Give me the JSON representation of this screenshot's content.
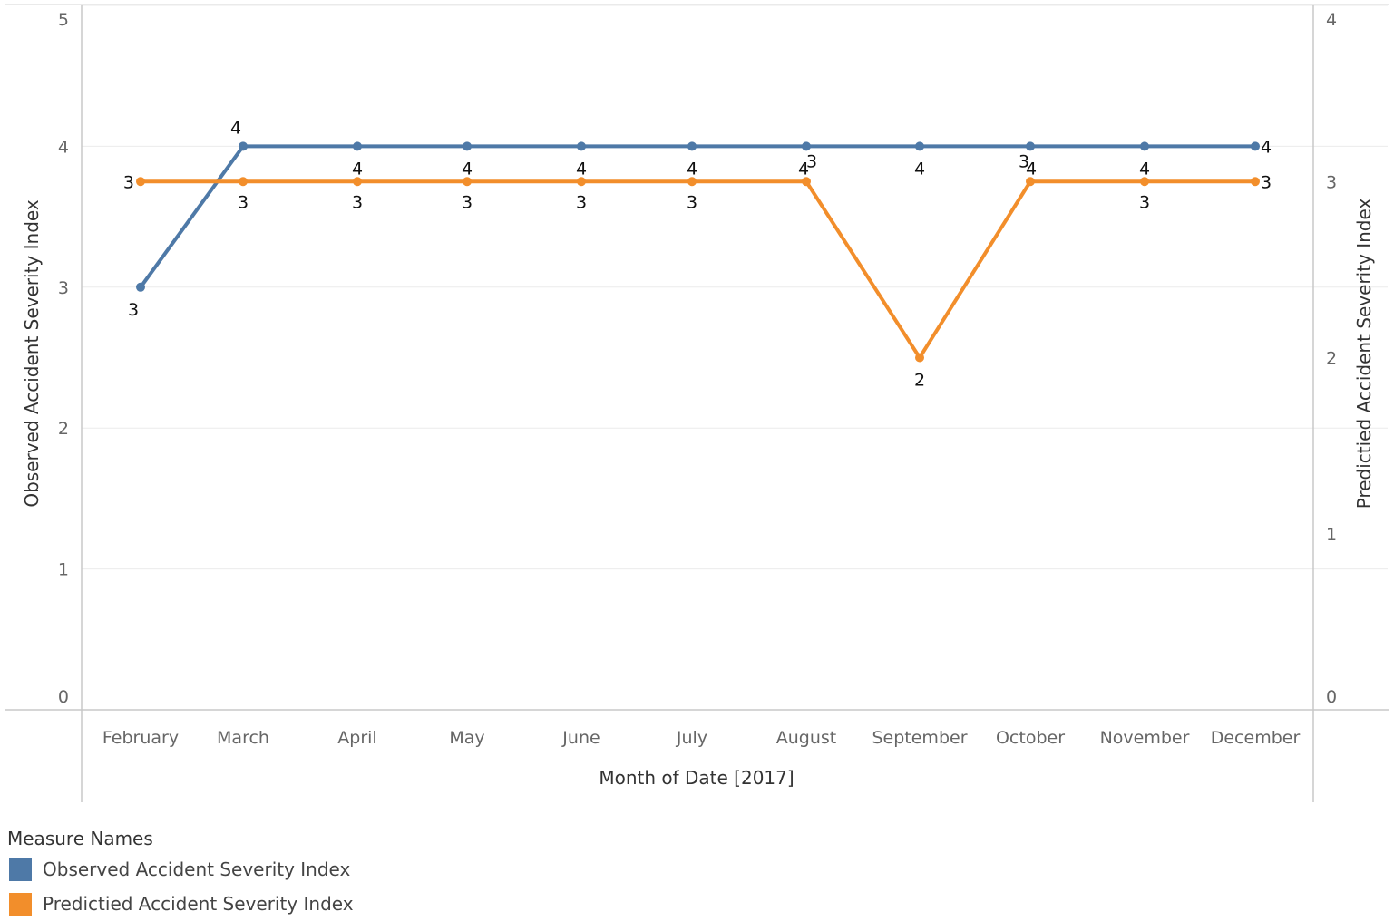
{
  "chart_data": {
    "type": "line",
    "xlabel": "Month of Date [2017]",
    "ylabel_left": "Observed  Accident Severity Index",
    "ylabel_right": "Predictied  Accident Severity Index",
    "categories": [
      "February",
      "March",
      "April",
      "May",
      "June",
      "July",
      "August",
      "September",
      "October",
      "November",
      "December"
    ],
    "ylim_left": [
      0,
      5
    ],
    "ylim_right": [
      0,
      4
    ],
    "yticks_left": [
      0,
      1,
      2,
      3,
      4,
      5
    ],
    "yticks_right": [
      0,
      1,
      2,
      3,
      4
    ],
    "grid": true,
    "series": [
      {
        "name": "Observed Accident Severity Index",
        "axis": "left",
        "color": "#4e79a7",
        "values": [
          3,
          4,
          4,
          4,
          4,
          4,
          4,
          4,
          4,
          4,
          4
        ],
        "labels": [
          "3",
          "4",
          "4",
          "4",
          "4",
          "4",
          "4",
          "4",
          "4",
          "4",
          "4"
        ]
      },
      {
        "name": "Predictied Accident Severity Index",
        "axis": "right",
        "color": "#f28e2b",
        "values": [
          3,
          3,
          3,
          3,
          3,
          3,
          3,
          2,
          3,
          3,
          3
        ],
        "labels": [
          "3",
          "3",
          "3",
          "3",
          "3",
          "3",
          "3",
          "2",
          "3",
          "3",
          "3"
        ]
      }
    ],
    "legend": {
      "title": "Measure Names",
      "placement": "bottom-left",
      "items": [
        {
          "label": "Observed Accident Severity Index",
          "color": "#4e79a7"
        },
        {
          "label": "Predictied Accident Severity Index",
          "color": "#f28e2b"
        }
      ]
    }
  }
}
